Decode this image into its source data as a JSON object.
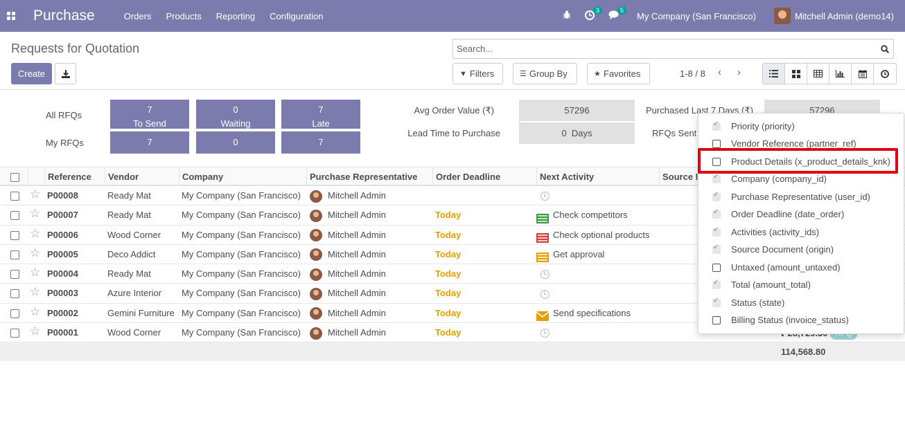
{
  "nav": {
    "app_name": "Purchase",
    "menu": [
      "Orders",
      "Products",
      "Reporting",
      "Configuration"
    ],
    "activity_count": "3",
    "message_count": "5",
    "company": "My Company (San Francisco)",
    "user": "Mitchell Admin (demo14)"
  },
  "control": {
    "title": "Requests for Quotation",
    "create_label": "Create",
    "search_placeholder": "Search...",
    "filters_label": "Filters",
    "groupby_label": "Group By",
    "favorites_label": "Favorites",
    "pager": "1-8 / 8"
  },
  "dashboard": {
    "all_rfqs_label": "All RFQs",
    "my_rfqs_label": "My RFQs",
    "tiles": [
      {
        "all": "7",
        "label": "To Send",
        "my": "7"
      },
      {
        "all": "0",
        "label": "Waiting",
        "my": "0"
      },
      {
        "all": "7",
        "label": "Late",
        "my": "7"
      }
    ],
    "avg_order_label": "Avg Order Value (₹)",
    "avg_order_value": "57296",
    "lead_time_label": "Lead Time to Purchase",
    "lead_time_value": "0  Days",
    "purchased_label": "Purchased Last 7 Days (₹)",
    "purchased_value": "57296",
    "rfqs_sent_label": "RFQs Sent"
  },
  "table": {
    "headers": [
      "Reference",
      "Vendor",
      "Company",
      "Purchase Representative",
      "Order Deadline",
      "Next Activity",
      "Source I"
    ],
    "rows": [
      {
        "ref": "P00008",
        "vendor": "Ready Mat",
        "company": "My Company (San Francisco)",
        "rep": "Mitchell Admin",
        "deadline": "",
        "activity": "",
        "activity_icon": "clock-icon"
      },
      {
        "ref": "P00007",
        "vendor": "Ready Mat",
        "company": "My Company (San Francisco)",
        "rep": "Mitchell Admin",
        "deadline": "Today",
        "activity": "Check competitors",
        "activity_icon": "todo-icon"
      },
      {
        "ref": "P00006",
        "vendor": "Wood Corner",
        "company": "My Company (San Francisco)",
        "rep": "Mitchell Admin",
        "deadline": "Today",
        "activity": "Check optional products",
        "activity_icon": "todo-red-icon"
      },
      {
        "ref": "P00005",
        "vendor": "Deco Addict",
        "company": "My Company (San Francisco)",
        "rep": "Mitchell Admin",
        "deadline": "Today",
        "activity": "Get approval",
        "activity_icon": "todo-yellow-icon"
      },
      {
        "ref": "P00004",
        "vendor": "Ready Mat",
        "company": "My Company (San Francisco)",
        "rep": "Mitchell Admin",
        "deadline": "Today",
        "activity": "",
        "activity_icon": "clock-icon"
      },
      {
        "ref": "P00003",
        "vendor": "Azure Interior",
        "company": "My Company (San Francisco)",
        "rep": "Mitchell Admin",
        "deadline": "Today",
        "activity": "",
        "activity_icon": "clock-icon"
      },
      {
        "ref": "P00002",
        "vendor": "Gemini Furniture",
        "company": "My Company (San Francisco)",
        "rep": "Mitchell Admin",
        "deadline": "Today",
        "activity": "Send specifications",
        "activity_icon": "envelope-icon"
      },
      {
        "ref": "P00001",
        "vendor": "Wood Corner",
        "company": "My Company (San Francisco)",
        "rep": "Mitchell Admin",
        "deadline": "Today",
        "activity": "",
        "activity_icon": "clock-icon"
      }
    ],
    "partial_total_last_row": "₹ 28,729.30",
    "partial_status_last_row": "RFQ",
    "grand_total": "114,568.80"
  },
  "optional_columns": [
    {
      "label": "Priority (priority)",
      "checked": true
    },
    {
      "label": "Vendor Reference (partner_ref)",
      "checked": false
    },
    {
      "label": "Product Details (x_product_details_knk)",
      "checked": false,
      "highlighted": true
    },
    {
      "label": "Company (company_id)",
      "checked": true
    },
    {
      "label": "Purchase Representative (user_id)",
      "checked": true
    },
    {
      "label": "Order Deadline (date_order)",
      "checked": true
    },
    {
      "label": "Activities (activity_ids)",
      "checked": true
    },
    {
      "label": "Source Document (origin)",
      "checked": true
    },
    {
      "label": "Untaxed (amount_untaxed)",
      "checked": false
    },
    {
      "label": "Total (amount_total)",
      "checked": true
    },
    {
      "label": "Status (state)",
      "checked": true
    },
    {
      "label": "Billing Status (invoice_status)",
      "checked": false
    }
  ],
  "colors": {
    "brand": "#7c7bad",
    "today": "#e0a100",
    "highlight": "#e3000f"
  }
}
